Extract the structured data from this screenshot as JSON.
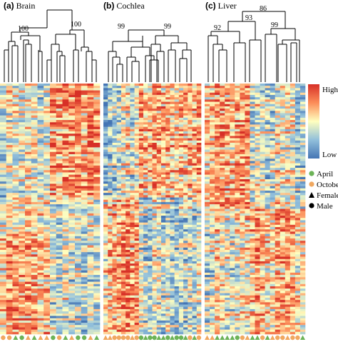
{
  "panels": [
    {
      "letter": "(a)",
      "name": "Brain",
      "bootstrap_labels": [
        "100",
        "100"
      ],
      "samples": {
        "season": [
          "o",
          "o",
          "a",
          "a",
          "o",
          "a",
          "o",
          "o",
          "a",
          "o",
          "a",
          "o",
          "a",
          "a",
          "o",
          "a"
        ],
        "sex": [
          "m",
          "m",
          "f",
          "m",
          "f",
          "f",
          "f",
          "f",
          "m",
          "m",
          "f",
          "f",
          "m",
          "m",
          "f",
          "f"
        ]
      }
    },
    {
      "letter": "(b)",
      "name": "Cochlea",
      "bootstrap_labels": [
        "99",
        "99"
      ],
      "samples": {
        "season": [
          "o",
          "o",
          "o",
          "o",
          "o",
          "o",
          "o",
          "o",
          "a",
          "a",
          "a",
          "a",
          "a",
          "a",
          "a",
          "a",
          "a",
          "a",
          "a",
          "o",
          "a",
          "o"
        ],
        "sex": [
          "f",
          "f",
          "m",
          "m",
          "m",
          "m",
          "f",
          "m",
          "m",
          "f",
          "m",
          "m",
          "f",
          "f",
          "m",
          "f",
          "m",
          "m",
          "f",
          "m",
          "f",
          "m"
        ]
      }
    },
    {
      "letter": "(c)",
      "name": "Liver",
      "bootstrap_labels": [
        "86",
        "92",
        "93",
        "99"
      ],
      "samples": {
        "season": [
          "o",
          "o",
          "a",
          "a",
          "a",
          "a",
          "a",
          "o",
          "o",
          "a",
          "a",
          "o",
          "a",
          "o",
          "o",
          "o",
          "o",
          "o",
          "o",
          "a"
        ],
        "sex": [
          "f",
          "f",
          "f",
          "f",
          "f",
          "f",
          "m",
          "m",
          "f",
          "f",
          "f",
          "m",
          "f",
          "f",
          "m",
          "m",
          "f",
          "m",
          "m",
          "f"
        ]
      }
    }
  ],
  "scale": {
    "high": "High",
    "low": "Low"
  },
  "legend": [
    {
      "symbol": "circle",
      "color": "#6cb357",
      "label": "April"
    },
    {
      "symbol": "circle",
      "color": "#f0a860",
      "label": "October"
    },
    {
      "symbol": "triangle",
      "color": "#000000",
      "label": "Female"
    },
    {
      "symbol": "circle",
      "color": "#000000",
      "label": "Male"
    }
  ],
  "colors": {
    "april": "#6cb357",
    "october": "#f0a860",
    "high": "#d73027",
    "mid": "#ffffbf",
    "low": "#4575b4"
  }
}
